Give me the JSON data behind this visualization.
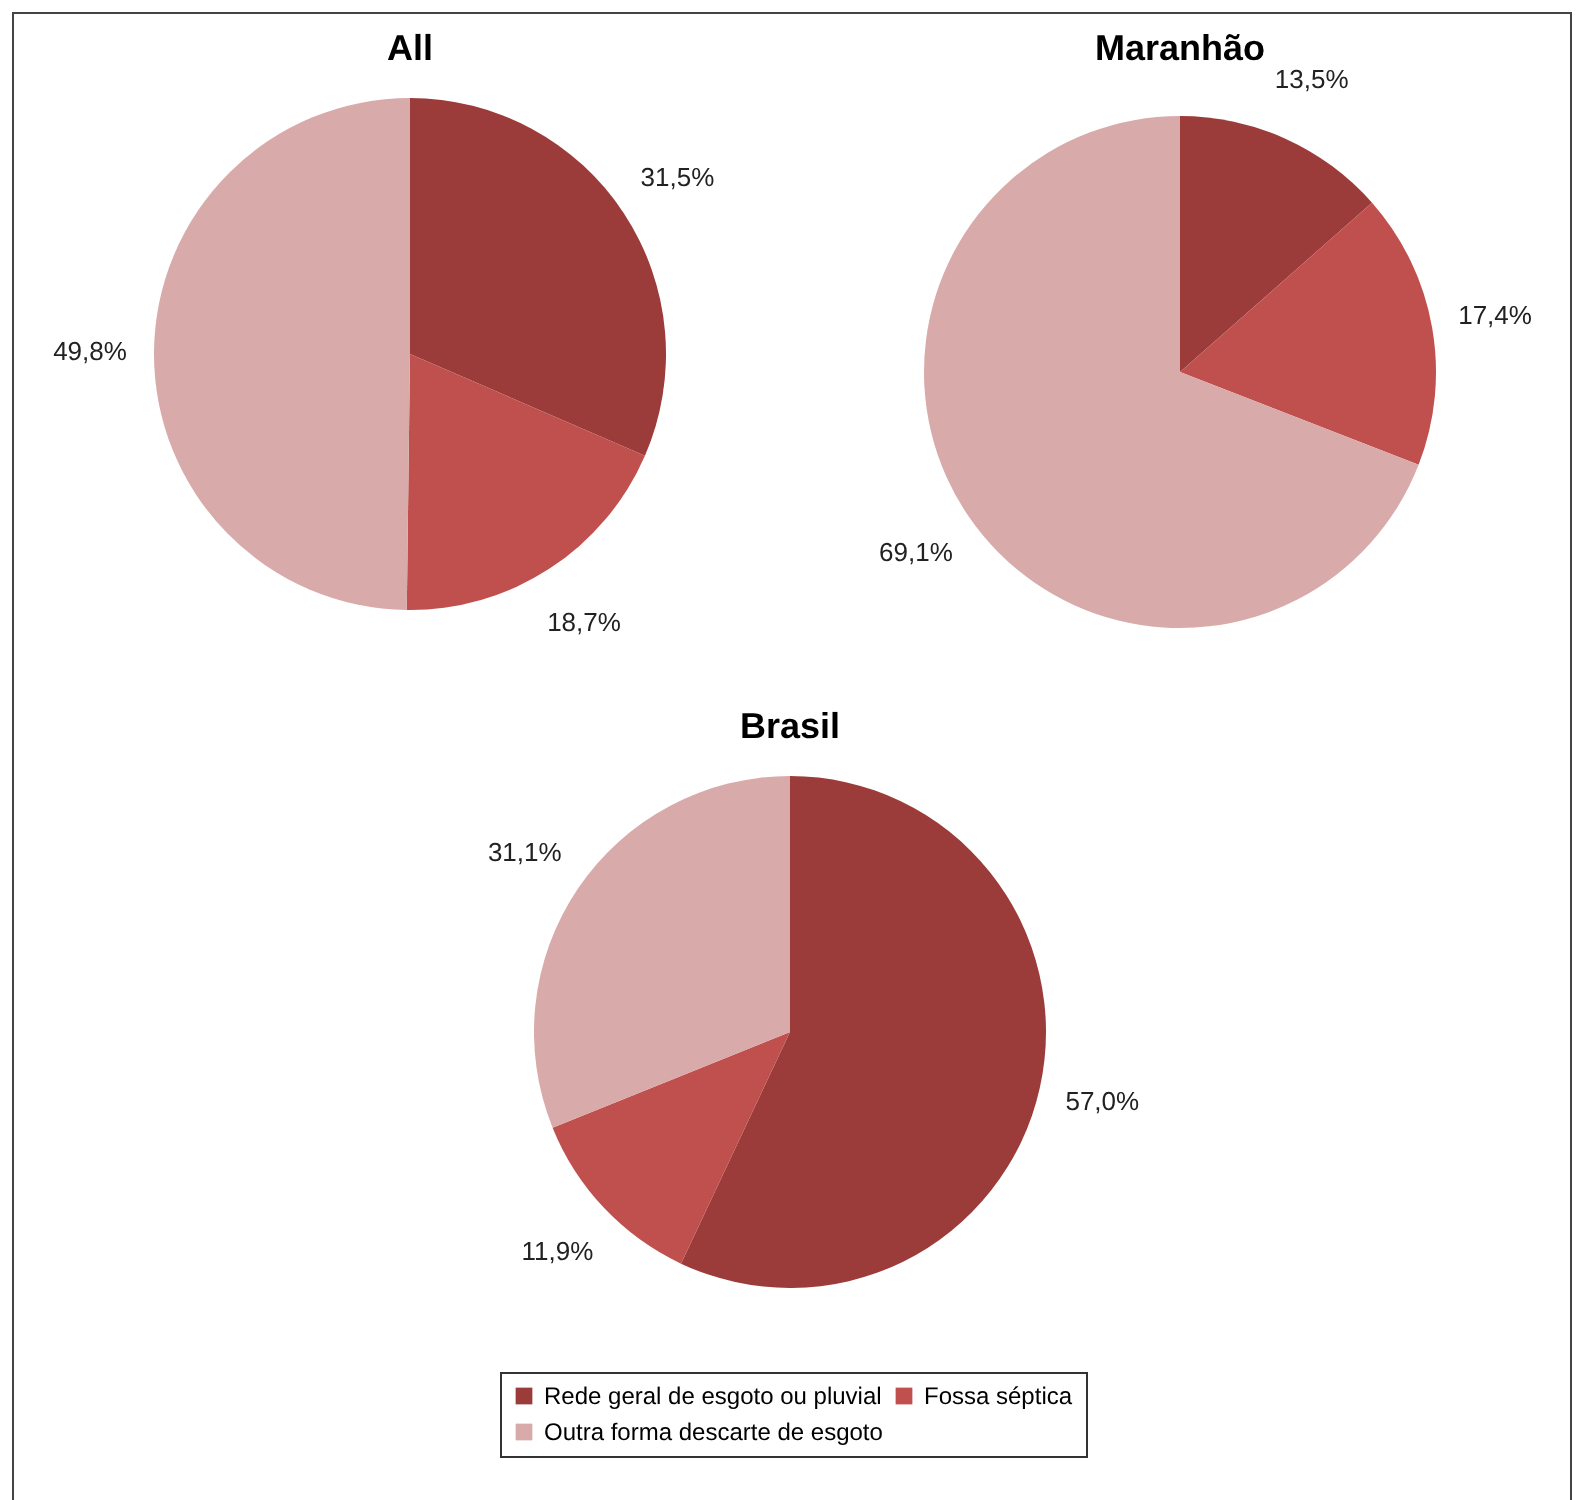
{
  "chart_data": [
    {
      "type": "pie",
      "title": "All",
      "categories": [
        "Rede geral de esgoto ou pluvial",
        "Fossa séptica",
        "Outra forma descarte de esgoto"
      ],
      "values": [
        31.5,
        18.7,
        49.8
      ],
      "colors": [
        "#9b3b3a",
        "#c0504d",
        "#d9aaaa"
      ],
      "value_labels": [
        "31,5%",
        "18,7%",
        "49,8%"
      ],
      "legend": "bottom"
    },
    {
      "type": "pie",
      "title": "Maranhão",
      "categories": [
        null,
        null,
        null
      ],
      "values": [
        13.5,
        17.4,
        69.1
      ],
      "colors": [
        "#9b3b3a",
        "#c0504d",
        "#d9aaaa"
      ],
      "value_labels": [
        "13,5%",
        "17,4%",
        "69,1%"
      ]
    },
    {
      "type": "pie",
      "title": "Brasil",
      "categories": [
        null,
        null,
        null
      ],
      "values": [
        57.0,
        11.9,
        31.1
      ],
      "colors": [
        "#9b3b3a",
        "#c0504d",
        "#d9aaaa"
      ],
      "value_labels": [
        "57,0%",
        "11,9%",
        "31,1%"
      ]
    }
  ]
}
